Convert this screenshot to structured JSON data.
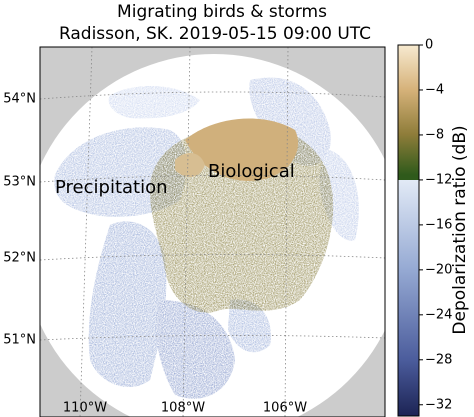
{
  "title": "Migrating birds & storms",
  "subtitle": "Radisson, SK. 2019-05-15 09:00 UTC",
  "map": {
    "lat_labels": [
      "54°N",
      "53°N",
      "52°N",
      "51°N"
    ],
    "lon_labels": [
      "110°W",
      "108°W",
      "106°W"
    ],
    "annotations": [
      "Precipitation",
      "Biological"
    ]
  },
  "colorbar": {
    "label": "Depolarization ratio (dB)",
    "lim": [
      -33,
      0
    ],
    "ticks": [
      {
        "value": 0,
        "label": "0"
      },
      {
        "value": -4,
        "label": "−4"
      },
      {
        "value": -8,
        "label": "−8"
      },
      {
        "value": -12,
        "label": "−12"
      },
      {
        "value": -16,
        "label": "−16"
      },
      {
        "value": -20,
        "label": "−20"
      },
      {
        "value": -24,
        "label": "−24"
      },
      {
        "value": -28,
        "label": "−28"
      },
      {
        "value": -32,
        "label": "−32"
      }
    ]
  }
}
